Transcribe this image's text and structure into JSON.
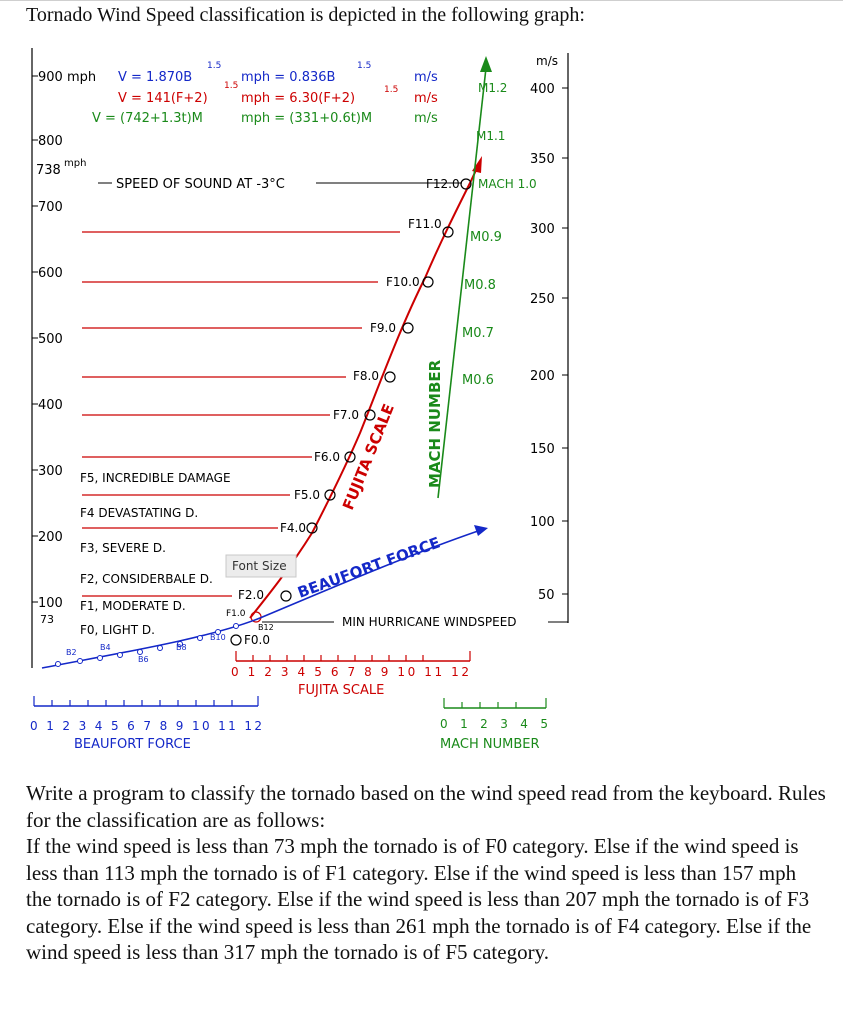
{
  "intro": "Tornado Wind Speed classification is depicted in the following graph:",
  "figure": {
    "colors": {
      "red": "#cc0000",
      "green": "#1a8a1a",
      "blue": "#1428c8",
      "black": "#000000"
    },
    "header_units": "m/s",
    "formulas": [
      {
        "lhs": "V = 1.870B",
        "exp": "1.5",
        "mid": "mph = 0.836B",
        "exp2": "1.5",
        "unit": "m/s"
      },
      {
        "lhs": "V = 141(F+2)",
        "exp": "1.5",
        "mid": "mph = 6.30(F+2)",
        "exp2": "1.5",
        "unit": "m/s"
      },
      {
        "lhs": "V = (742+1.3t)M",
        "mid": "mph = (331+0.6t)M",
        "unit": "m/s"
      }
    ],
    "left_axis": [
      "900 mph",
      "800",
      "700",
      "600",
      "500",
      "400",
      "300",
      "200",
      "100"
    ],
    "left_extra": {
      "val738": "738",
      "sup738": "mph",
      "val73": "73"
    },
    "right_axis": [
      "400",
      "350",
      "300",
      "250",
      "200",
      "150",
      "100",
      "50"
    ],
    "speed_of_sound": "SPEED OF SOUND AT -3°C",
    "f_markers": [
      "F12.0",
      "F11.0",
      "F10.0",
      "F9.0",
      "F8.0",
      "F7.0",
      "F6.0",
      "F5.0",
      "F4.0",
      "F2.0",
      "F1.0",
      "F0.0"
    ],
    "mach_labels": [
      "M1.2",
      "M1.1",
      "MACH 1.0",
      "M0.9",
      "M0.8",
      "M0.7",
      "M0.6"
    ],
    "damage": [
      "F5, INCREDIBLE DAMAGE",
      "F4 DEVASTATING D.",
      "F3, SEVERE D.",
      "F2, CONSIDERBALE D.",
      "F1, MODERATE D.",
      "F0, LIGHT D."
    ],
    "b_markers": [
      "B2",
      "B4",
      "B6",
      "B8",
      "B10",
      "B12"
    ],
    "fujita_scale_curve": "FUJITA SCALE",
    "mach_number_vert": "MACH NUMBER",
    "beaufort_force_diag": "BEAUFORT FORCE",
    "tooltip": "Font Size",
    "min_hurricane": "MIN HURRICANE WINDSPEED",
    "fujita_ticks": "0 1 2 3 4 5 6 7 8 9 10 11 12",
    "fujita_axis_label": "FUJITA SCALE",
    "beaufort_ticks": "0 1 2 3 4 5 6 7 8 9 10 11 12",
    "beaufort_axis_label": "BEAUFORT FORCE",
    "mach_ticks": "0 1 2 3 4 5",
    "mach_axis_label": "MACH NUMBER"
  },
  "problem": [
    "Write a program to classify the tornado based on the wind speed read from the keyboard. Rules for the classification are as follows:",
    "If the wind speed is less than 73 mph the tornado is of F0 category. Else if the wind speed is less than 113 mph the tornado is of F1 category. Else if the wind speed is less than 157 mph the tornado is of F2 category. Else if the wind speed is less than 207 mph the tornado is of F3 category. Else if the wind speed is less than 261 mph the tornado is of F4 category. Else if the wind speed is less than 317 mph the tornado is of F5 category."
  ]
}
